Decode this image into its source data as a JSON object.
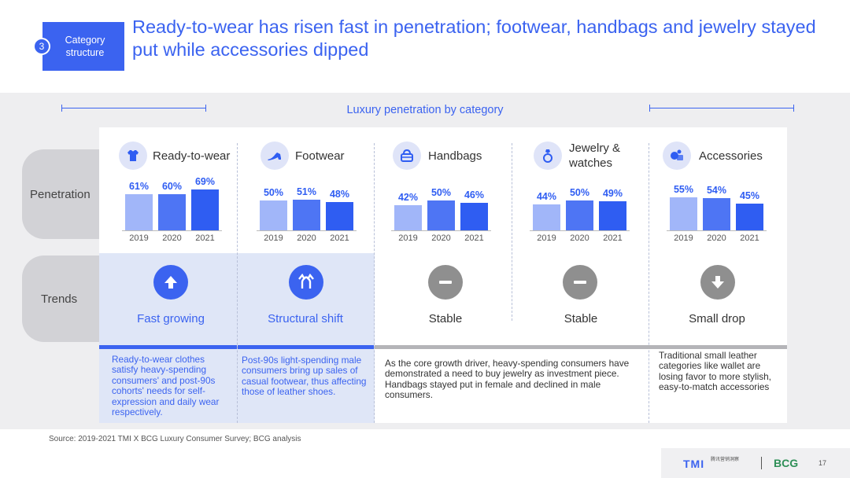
{
  "header": {
    "section_number": "3",
    "section_label": "Category structure",
    "headline": "Ready-to-wear has risen fast in penetration; footwear, handbags and jewelry stayed put while accessories dipped"
  },
  "rows": {
    "penetration": "Penetration",
    "trends": "Trends"
  },
  "colors": {
    "accent": "#3b63f0",
    "bar": "#2f5df2",
    "highlight": "#dfe6f7",
    "grey": "#888888"
  },
  "chart_data": {
    "type": "bar",
    "title": "Luxury penetration by category",
    "categories": [
      "2019",
      "2020",
      "2021"
    ],
    "series": [
      {
        "name": "Ready-to-wear",
        "values": [
          61,
          60,
          69
        ],
        "labels": [
          "61%",
          "60%",
          "69%"
        ]
      },
      {
        "name": "Footwear",
        "values": [
          50,
          51,
          48
        ],
        "labels": [
          "50%",
          "51%",
          "48%"
        ]
      },
      {
        "name": "Handbags",
        "values": [
          42,
          50,
          46
        ],
        "labels": [
          "42%",
          "50%",
          "46%"
        ]
      },
      {
        "name": "Jewelry & watches",
        "values": [
          44,
          50,
          49
        ],
        "labels": [
          "44%",
          "50%",
          "49%"
        ]
      },
      {
        "name": "Accessories",
        "values": [
          55,
          54,
          45
        ],
        "labels": [
          "55%",
          "54%",
          "45%"
        ]
      }
    ]
  },
  "categories": [
    {
      "name": "Ready-to-wear",
      "icon": "shirt-icon",
      "trend": "Fast growing",
      "trend_icon": "arrow-up-icon",
      "trend_color": "accent",
      "note": "Ready-to-wear clothes satisfy heavy-spending consumers' and post-90s cohorts' needs for self-expression and daily wear respectively."
    },
    {
      "name": "Footwear",
      "icon": "high-heel-icon",
      "trend": "Structural shift",
      "trend_icon": "shift-arrows-icon",
      "trend_color": "accent",
      "note": "Post-90s light-spending male consumers bring up sales of casual footwear, thus affecting those of leather shoes."
    },
    {
      "name": "Handbags",
      "icon": "handbag-icon",
      "trend": "Stable",
      "trend_icon": "minus-icon",
      "trend_color": "grey",
      "note": "As the core growth driver, heavy-spending consumers have demonstrated a need to buy jewelry as investment piece. Handbags stayed put in female and declined in male consumers."
    },
    {
      "name": "Jewelry & watches",
      "icon": "ring-icon",
      "trend": "Stable",
      "trend_icon": "minus-icon",
      "trend_color": "grey",
      "note": ""
    },
    {
      "name": "Accessories",
      "icon": "accessories-icon",
      "trend": "Small drop",
      "trend_icon": "arrow-down-icon",
      "trend_color": "grey",
      "note": "Traditional small leather categories like wallet are losing favor to more stylish, easy-to-match accessories"
    }
  ],
  "footer": {
    "source": "Source: 2019-2021 TMI X BCG Luxury Consumer Survey; BCG analysis",
    "tmi_logo": "TMI",
    "tmi_logo_sub": "腾讯营销洞察",
    "bcg_logo": "BCG",
    "page_number": "17"
  }
}
